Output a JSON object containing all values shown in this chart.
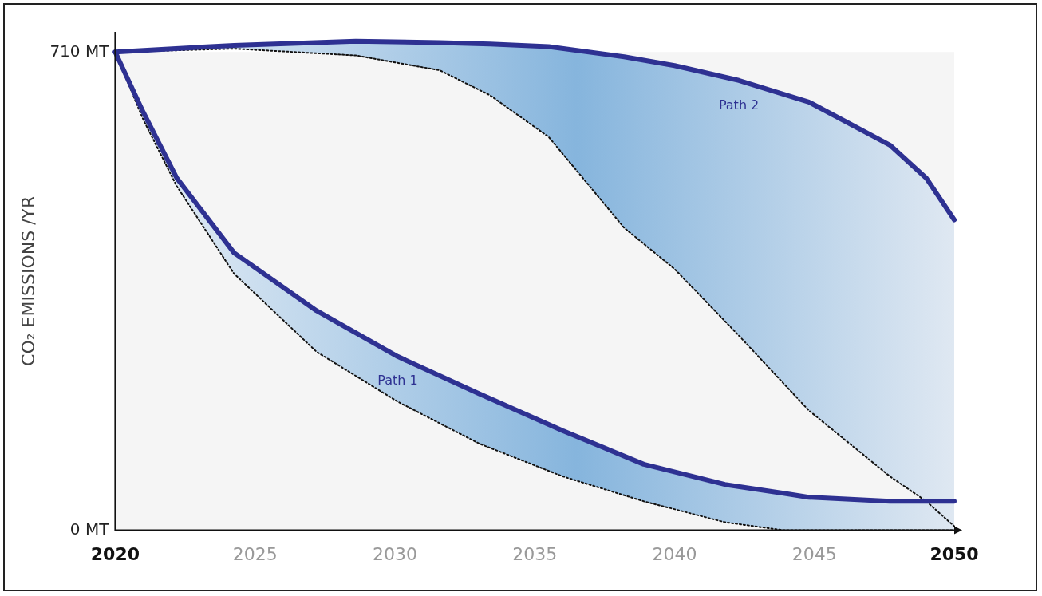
{
  "chart_data": {
    "type": "line",
    "ylabel": "CO₂ EMISSIONS /YR",
    "xlim": [
      2020,
      2050
    ],
    "xticks": [
      2020,
      2025,
      2030,
      2035,
      2040,
      2045,
      2050
    ],
    "ylim": [
      0,
      740
    ],
    "yticks": [
      {
        "value": 0,
        "label": "0 MT"
      },
      {
        "value": 710,
        "label": "710 MT"
      }
    ],
    "grid": false,
    "legend": false,
    "marker": "none",
    "series": [
      {
        "name": "Path 1",
        "color": "#2e3192",
        "x": [
          2020,
          2021,
          2022.2,
          2024.25,
          2027.2,
          2030.1,
          2033,
          2036,
          2038.9,
          2041.8,
          2043.9,
          2044.8,
          2047.7,
          2050
        ],
        "values": [
          710,
          621,
          523,
          412,
          326,
          258,
          203,
          148,
          98,
          68,
          55,
          49,
          43,
          43
        ],
        "lower": [
          710,
          610,
          511,
          381,
          265,
          191,
          129,
          80,
          43,
          12,
          0,
          0,
          0,
          0
        ],
        "upper": [
          710,
          621,
          523,
          412,
          326,
          258,
          203,
          148,
          98,
          68,
          55,
          49,
          43,
          43
        ]
      },
      {
        "name": "Path 2",
        "color": "#2e3192",
        "x": [
          2020,
          2024.25,
          2028.6,
          2031.6,
          2033.4,
          2035.5,
          2038.2,
          2040,
          2042.3,
          2044.8,
          2047.7,
          2049,
          2050
        ],
        "values": [
          710,
          720,
          726,
          724,
          722,
          718,
          703,
          690,
          668,
          636,
          572,
          523,
          461
        ],
        "lower": [
          710,
          715,
          705,
          683,
          646,
          584,
          449,
          388,
          289,
          178,
          80,
          43,
          6
        ],
        "upper": [
          710,
          720,
          726,
          724,
          722,
          718,
          703,
          690,
          668,
          636,
          572,
          523,
          461
        ]
      },
      {
        "color": "#111111",
        "line_style": "dotted",
        "x": [
          2020,
          2021,
          2022.2,
          2024.25,
          2027.2,
          2030.1,
          2033,
          2036,
          2038.9,
          2041.8,
          2043.9,
          2044.8,
          2047.7,
          2050
        ],
        "values": [
          710,
          610,
          511,
          381,
          265,
          191,
          129,
          80,
          43,
          12,
          0,
          0,
          0,
          0
        ]
      },
      {
        "color": "#111111",
        "line_style": "dotted",
        "x": [
          2020,
          2024.25,
          2028.6,
          2031.6,
          2033.4,
          2035.5,
          2038.2,
          2040,
          2042.3,
          2044.8,
          2047.7,
          2049,
          2050
        ],
        "values": [
          710,
          715,
          705,
          683,
          646,
          584,
          449,
          388,
          289,
          178,
          80,
          43,
          6
        ]
      }
    ]
  }
}
